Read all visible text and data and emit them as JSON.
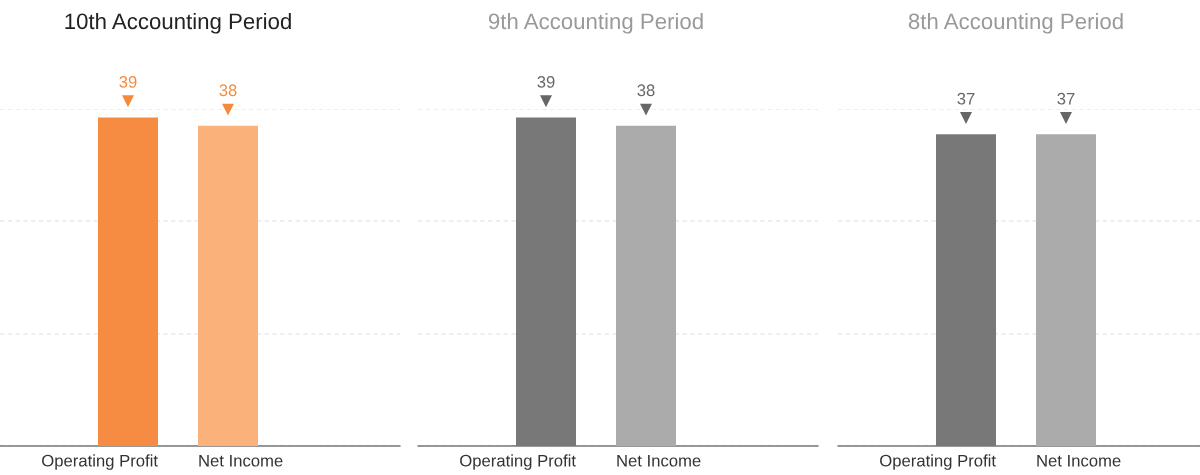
{
  "chart_data": [
    {
      "type": "bar",
      "title": "10th Accounting Period",
      "categories": [
        "Operating Profit",
        "Net Income"
      ],
      "values": [
        39,
        38
      ],
      "colors": [
        "#f68b42",
        "#fbb27a"
      ],
      "data_labels": true,
      "ylim": [
        0,
        40
      ],
      "yticks": [
        {
          "value": 0,
          "label": null
        },
        {
          "value": 13.3,
          "label": null
        },
        {
          "value": 26.7,
          "label": null
        },
        {
          "value": 40,
          "label": null
        }
      ],
      "grid": "y",
      "tick_labels": "x"
    },
    {
      "type": "bar",
      "title": "9th Accounting Period",
      "categories": [
        "Operating Profit",
        "Net Income"
      ],
      "values": [
        39,
        38
      ],
      "colors": [
        "#787878",
        "#ababab"
      ],
      "data_labels": true,
      "ylim": [
        0,
        40
      ],
      "yticks": [
        {
          "value": 0,
          "label": null
        },
        {
          "value": 13.3,
          "label": null
        },
        {
          "value": 26.7,
          "label": null
        },
        {
          "value": 40,
          "label": null
        }
      ],
      "grid": "y",
      "tick_labels": "x"
    },
    {
      "type": "bar",
      "title": "8th Accounting Period",
      "categories": [
        "Operating Profit",
        "Net Income"
      ],
      "values": [
        37,
        37
      ],
      "colors": [
        "#787878",
        "#ababab"
      ],
      "data_labels": true,
      "ylim": [
        0,
        40
      ],
      "yticks": [
        {
          "value": 0,
          "label": null
        },
        {
          "value": 13.3,
          "label": null
        },
        {
          "value": 26.7,
          "label": null
        },
        {
          "value": 40,
          "label": null
        }
      ],
      "grid": "y",
      "tick_labels": "x"
    }
  ]
}
